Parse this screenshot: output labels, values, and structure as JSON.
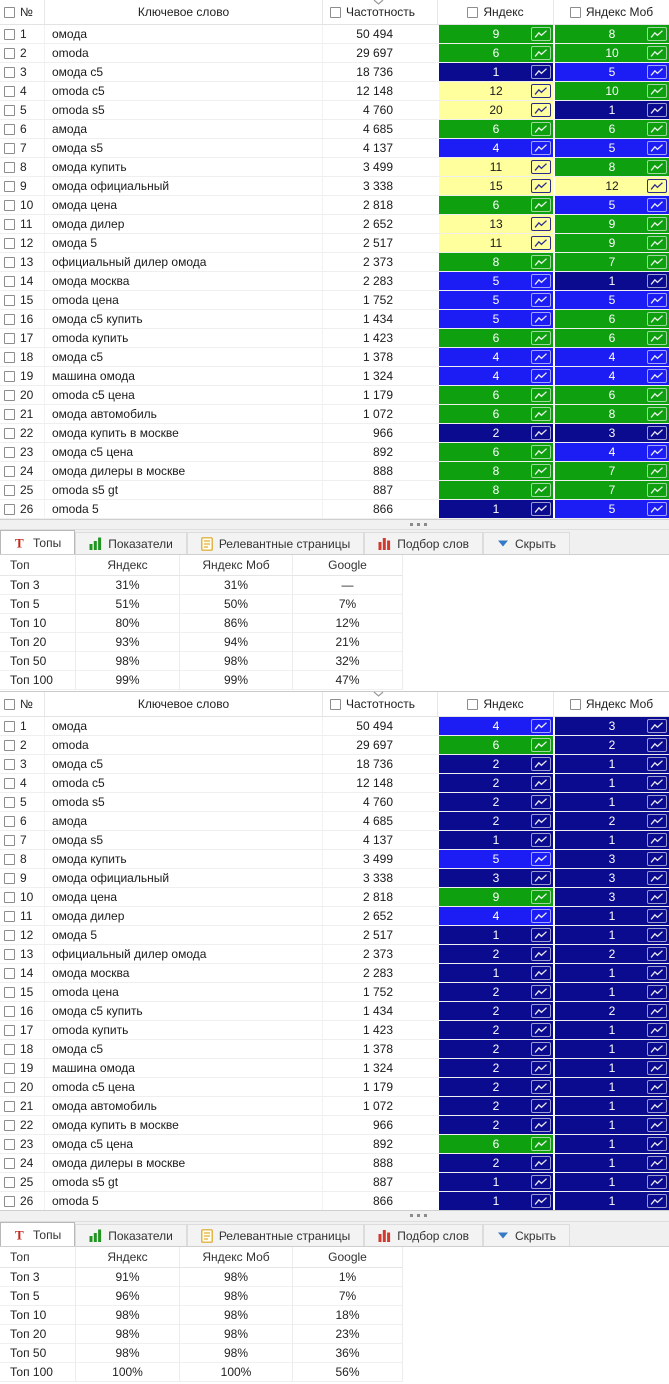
{
  "columns": {
    "num": "№",
    "keyword": "Ключевое слово",
    "frequency": "Частотность",
    "yandex": "Яндекс",
    "yandex_mob": "Яндекс Моб"
  },
  "keywords": [
    {
      "n": 1,
      "kw": "омода",
      "freq": "50 494"
    },
    {
      "n": 2,
      "kw": "omoda",
      "freq": "29 697"
    },
    {
      "n": 3,
      "kw": "омода с5",
      "freq": "18 736"
    },
    {
      "n": 4,
      "kw": "omoda c5",
      "freq": "12 148"
    },
    {
      "n": 5,
      "kw": "omoda s5",
      "freq": "4 760"
    },
    {
      "n": 6,
      "kw": "амода",
      "freq": "4 685"
    },
    {
      "n": 7,
      "kw": "омода s5",
      "freq": "4 137"
    },
    {
      "n": 8,
      "kw": "омода купить",
      "freq": "3 499"
    },
    {
      "n": 9,
      "kw": "омода официальный",
      "freq": "3 338"
    },
    {
      "n": 10,
      "kw": "омода цена",
      "freq": "2 818"
    },
    {
      "n": 11,
      "kw": "омода дилер",
      "freq": "2 652"
    },
    {
      "n": 12,
      "kw": "омода 5",
      "freq": "2 517"
    },
    {
      "n": 13,
      "kw": "официальный дилер омода",
      "freq": "2 373"
    },
    {
      "n": 14,
      "kw": "омода москва",
      "freq": "2 283"
    },
    {
      "n": 15,
      "kw": "omoda цена",
      "freq": "1 752"
    },
    {
      "n": 16,
      "kw": "омода с5 купить",
      "freq": "1 434"
    },
    {
      "n": 17,
      "kw": "omoda купить",
      "freq": "1 423"
    },
    {
      "n": 18,
      "kw": "омода с5",
      "freq": "1 378"
    },
    {
      "n": 19,
      "kw": "машина омода",
      "freq": "1 324"
    },
    {
      "n": 20,
      "kw": "omoda с5 цена",
      "freq": "1 179"
    },
    {
      "n": 21,
      "kw": "омода автомобиль",
      "freq": "1 072"
    },
    {
      "n": 22,
      "kw": "омода купить в москве",
      "freq": "966"
    },
    {
      "n": 23,
      "kw": "омода с5 цена",
      "freq": "892"
    },
    {
      "n": 24,
      "kw": "омода дилеры в москве",
      "freq": "888"
    },
    {
      "n": 25,
      "kw": "omoda s5 gt",
      "freq": "887"
    },
    {
      "n": 26,
      "kw": "omoda 5",
      "freq": "866"
    }
  ],
  "t1_positions": [
    [
      9,
      8
    ],
    [
      6,
      10
    ],
    [
      1,
      5
    ],
    [
      12,
      10
    ],
    [
      20,
      1
    ],
    [
      6,
      6
    ],
    [
      4,
      5
    ],
    [
      11,
      8
    ],
    [
      15,
      12
    ],
    [
      6,
      5
    ],
    [
      13,
      9
    ],
    [
      11,
      9
    ],
    [
      8,
      7
    ],
    [
      5,
      1
    ],
    [
      5,
      5
    ],
    [
      5,
      6
    ],
    [
      6,
      6
    ],
    [
      4,
      4
    ],
    [
      4,
      4
    ],
    [
      6,
      6
    ],
    [
      6,
      8
    ],
    [
      2,
      3
    ],
    [
      6,
      4
    ],
    [
      8,
      7
    ],
    [
      8,
      7
    ],
    [
      1,
      5
    ]
  ],
  "t2_positions": [
    [
      4,
      3
    ],
    [
      6,
      2
    ],
    [
      2,
      1
    ],
    [
      2,
      1
    ],
    [
      2,
      1
    ],
    [
      2,
      2
    ],
    [
      1,
      1
    ],
    [
      5,
      3
    ],
    [
      3,
      3
    ],
    [
      9,
      3
    ],
    [
      4,
      1
    ],
    [
      1,
      1
    ],
    [
      2,
      2
    ],
    [
      1,
      1
    ],
    [
      2,
      1
    ],
    [
      2,
      2
    ],
    [
      2,
      1
    ],
    [
      2,
      1
    ],
    [
      2,
      1
    ],
    [
      2,
      1
    ],
    [
      2,
      1
    ],
    [
      2,
      1
    ],
    [
      6,
      1
    ],
    [
      2,
      1
    ],
    [
      1,
      1
    ],
    [
      1,
      1
    ]
  ],
  "tabs": [
    {
      "label": "Топы",
      "icon": "tops-icon",
      "name": "tab-tops",
      "active": true
    },
    {
      "label": "Показатели",
      "icon": "indicators-icon",
      "name": "tab-indicators",
      "active": false
    },
    {
      "label": "Релевантные страницы",
      "icon": "relevant-pages-icon",
      "name": "tab-relevant-pages",
      "active": false
    },
    {
      "label": "Подбор слов",
      "icon": "word-selection-icon",
      "name": "tab-word-selection",
      "active": false
    },
    {
      "label": "Скрыть",
      "icon": "hide-icon",
      "name": "tab-hide",
      "active": false
    }
  ],
  "tops1": {
    "headers": [
      "Топ",
      "Яндекс",
      "Яндекс Моб",
      "Google"
    ],
    "rows": [
      [
        "Топ 3",
        "31%",
        "31%",
        "—"
      ],
      [
        "Топ 5",
        "51%",
        "50%",
        "7%"
      ],
      [
        "Топ 10",
        "80%",
        "86%",
        "12%"
      ],
      [
        "Топ 20",
        "93%",
        "94%",
        "21%"
      ],
      [
        "Топ 50",
        "98%",
        "98%",
        "32%"
      ],
      [
        "Топ 100",
        "99%",
        "99%",
        "47%"
      ]
    ]
  },
  "tops2": {
    "headers": [
      "Топ",
      "Яндекс",
      "Яндекс Моб",
      "Google"
    ],
    "rows": [
      [
        "Топ 3",
        "91%",
        "98%",
        "1%"
      ],
      [
        "Топ 5",
        "96%",
        "98%",
        "7%"
      ],
      [
        "Топ 10",
        "98%",
        "98%",
        "18%"
      ],
      [
        "Топ 20",
        "98%",
        "98%",
        "23%"
      ],
      [
        "Топ 50",
        "98%",
        "98%",
        "36%"
      ],
      [
        "Топ 100",
        "100%",
        "100%",
        "56%"
      ]
    ]
  },
  "colors": {
    "pos_1_3": "#0B0B90",
    "pos_4_5": "#1C1CF5",
    "pos_6_10": "#0FA00F",
    "pos_11_20": "#FFFF9E",
    "pos_text_light": "#FFFFFF",
    "pos_text_dark": "#1A1A1A",
    "chart_icon_dark": "#2B2B8E",
    "tab_icon_red": "#C3271C",
    "tab_icon_green": "#219421",
    "tab_icon_yellow": "#DCA61F",
    "tab_icon_red2": "#D23A30",
    "tab_icon_blue": "#3679C6",
    "sort_chevron": "#9A9A9A"
  }
}
